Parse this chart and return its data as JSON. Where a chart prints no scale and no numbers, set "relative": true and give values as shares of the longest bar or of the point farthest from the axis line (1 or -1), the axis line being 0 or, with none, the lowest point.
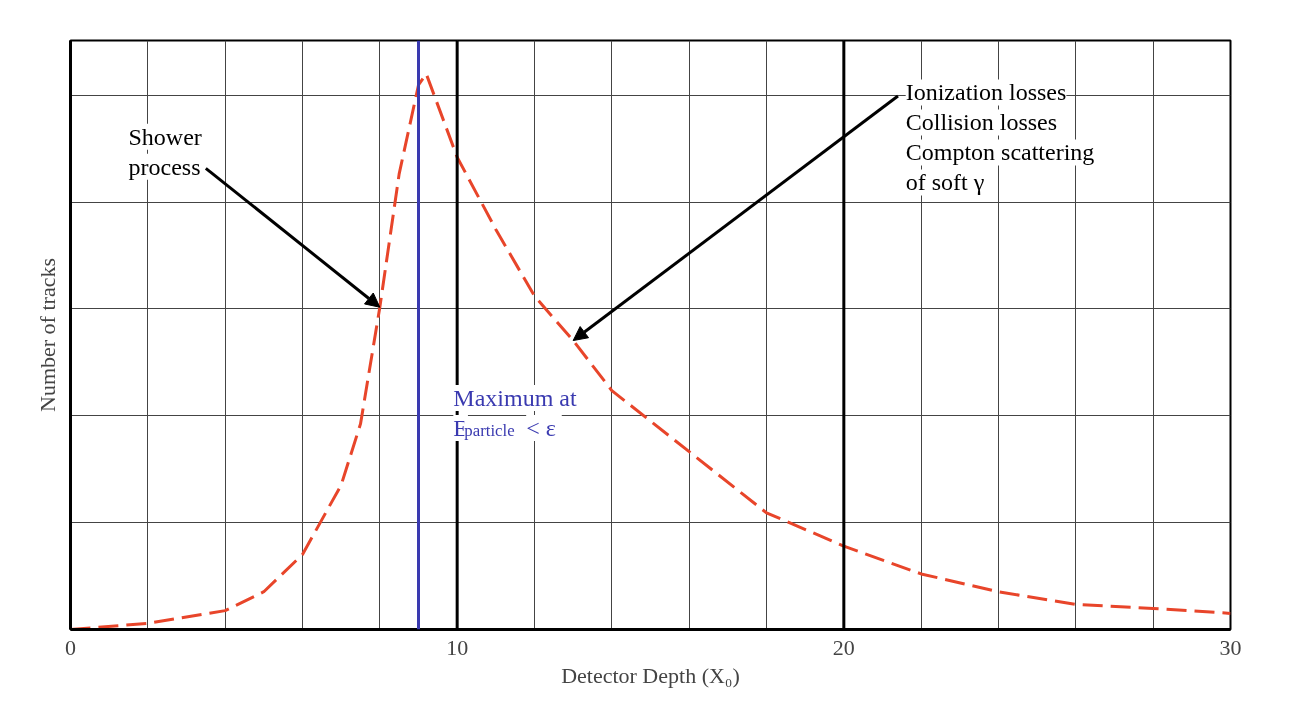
{
  "chart_data": {
    "type": "line",
    "relative": true,
    "xlabel": "Detector Depth (X₀)",
    "ylabel": "Number of tracks",
    "x": [
      0,
      2,
      4,
      5,
      6,
      7,
      7.5,
      8,
      8.5,
      9,
      9.2,
      10,
      11,
      12,
      13,
      14,
      16,
      18,
      20,
      22,
      24,
      26,
      28,
      30
    ],
    "series": [
      {
        "color": "#e8452a",
        "values": [
          0,
          0.011,
          0.034,
          0.068,
          0.135,
          0.26,
          0.37,
          0.58,
          0.82,
          0.98,
          1.0,
          0.85,
          0.72,
          0.6,
          0.52,
          0.43,
          0.32,
          0.21,
          0.15,
          0.1,
          0.068,
          0.045,
          0.038,
          0.029
        ]
      }
    ],
    "line_style": "dashed",
    "marker": "none",
    "grid": true,
    "xlim": [
      0,
      30
    ],
    "xticks": [
      0,
      {
        "value": 2,
        "label": null
      },
      {
        "value": 4,
        "label": null
      },
      {
        "value": 6,
        "label": null
      },
      {
        "value": 8,
        "label": null
      },
      10,
      {
        "value": 12,
        "label": null
      },
      {
        "value": 14,
        "label": null
      },
      {
        "value": 16,
        "label": null
      },
      {
        "value": 18,
        "label": null
      },
      20,
      {
        "value": 22,
        "label": null
      },
      {
        "value": 24,
        "label": null
      },
      {
        "value": 26,
        "label": null
      },
      {
        "value": 28,
        "label": null
      },
      30
    ],
    "ref_lines": [
      {
        "axis": "x",
        "value": 9,
        "label": "Maximum at\nE$_{particle}$ < ε",
        "color": "#3a3ab0"
      }
    ],
    "annotations": [
      {
        "text": "Shower\nprocess",
        "x": 8,
        "y": 0.58
      },
      {
        "text": "Ionization losses\nCollision losses\nCompton scattering\nof soft γ",
        "x": 13,
        "y": 0.52
      }
    ]
  }
}
